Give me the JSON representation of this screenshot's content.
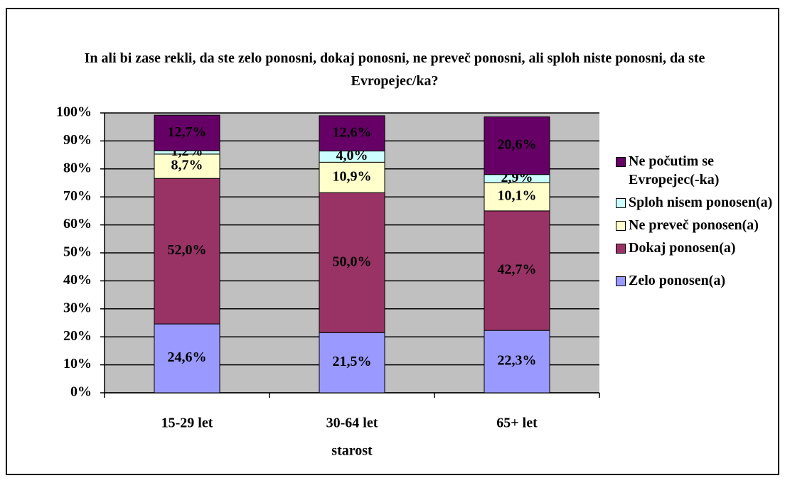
{
  "chart_data": {
    "type": "stacked_bar",
    "title": "In ali bi zase rekli, da ste zelo ponosni, dokaj ponosni, ne preveč ponosni, ali sploh niste ponosni, da ste Evropejec/ka?",
    "x_label": "starost",
    "categories": [
      "15-29 let",
      "30-64 let",
      "65+ let"
    ],
    "series": [
      {
        "name": "Zelo ponosen(a)",
        "color": "#9999ff",
        "values": [
          24.6,
          21.5,
          22.3
        ],
        "value_labels": [
          "24,6%",
          "21,5%",
          "22,3%"
        ]
      },
      {
        "name": "Dokaj ponosen(a)",
        "color": "#993366",
        "values": [
          52.0,
          50.0,
          42.7
        ],
        "value_labels": [
          "52,0%",
          "50,0%",
          "42,7%"
        ]
      },
      {
        "name": "Ne preveč ponosen(a)",
        "color": "#ffffcc",
        "values": [
          8.7,
          10.9,
          10.1
        ],
        "value_labels": [
          "8,7%",
          "10,9%",
          "10,1%"
        ]
      },
      {
        "name": "Sploh nisem ponosen(a)",
        "color": "#ccffff",
        "values": [
          1.2,
          4.0,
          2.9
        ],
        "value_labels": [
          "1,2%",
          "4,0%",
          "2,9%"
        ]
      },
      {
        "name": "Ne počutim se Evropejec(-ka)",
        "color": "#660066",
        "values": [
          12.7,
          12.6,
          20.6
        ],
        "value_labels": [
          "12,7%",
          "12,6%",
          "20,6%"
        ]
      }
    ],
    "ylim": [
      0,
      100
    ],
    "yticks": [
      {
        "value": 0,
        "label": "0%"
      },
      {
        "value": 10,
        "label": "10%"
      },
      {
        "value": 20,
        "label": "20%"
      },
      {
        "value": 30,
        "label": "30%"
      },
      {
        "value": 40,
        "label": "40%"
      },
      {
        "value": 50,
        "label": "50%"
      },
      {
        "value": 60,
        "label": "60%"
      },
      {
        "value": 70,
        "label": "70%"
      },
      {
        "value": 80,
        "label": "80%"
      },
      {
        "value": 90,
        "label": "90%"
      },
      {
        "value": 100,
        "label": "100%"
      }
    ],
    "grid": true,
    "plot_background": "#c0c0c0",
    "legend": "right"
  }
}
